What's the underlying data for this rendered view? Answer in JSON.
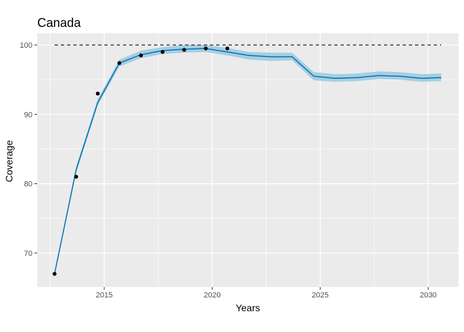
{
  "chart_data": {
    "type": "line",
    "title": "Canada",
    "xlabel": "Years",
    "ylabel": "Coverage",
    "xlim": [
      2011.9,
      2031.4
    ],
    "ylim": [
      65.1,
      101.7
    ],
    "x_ticks": [
      2015,
      2020,
      2025,
      2030
    ],
    "y_ticks": [
      70,
      80,
      90,
      100
    ],
    "x_major_grid": [
      2015,
      2020,
      2025,
      2030
    ],
    "x_minor_grid": [
      2012.5,
      2017.5,
      2022.5,
      2027.5
    ],
    "y_major_grid": [
      70,
      80,
      90,
      100
    ],
    "y_minor_grid": [
      65,
      75,
      85,
      95
    ],
    "grid": true,
    "reference_line": {
      "y": 100,
      "x_start": 2012.7,
      "x_end": 2030.6,
      "style": "dashed"
    },
    "series": [
      {
        "kind": "fit",
        "x": [
          2012.7,
          2013.7,
          2014.7,
          2015.7,
          2016.7,
          2017.7,
          2018.7,
          2019.7,
          2020.7,
          2021.7,
          2022.7,
          2023.7,
          2024.7,
          2025.7,
          2026.7,
          2027.7,
          2028.7,
          2029.7,
          2030.6
        ],
        "y": [
          67.0,
          82.0,
          91.7,
          97.4,
          98.6,
          99.2,
          99.4,
          99.5,
          99.0,
          98.5,
          98.3,
          98.3,
          95.5,
          95.2,
          95.3,
          95.6,
          95.5,
          95.2,
          95.3
        ],
        "lower": [
          67.0,
          81.6,
          91.3,
          96.9,
          98.1,
          98.7,
          98.9,
          99.0,
          98.5,
          97.9,
          97.7,
          97.8,
          94.9,
          94.7,
          94.8,
          95.1,
          95.0,
          94.7,
          94.8
        ],
        "upper": [
          67.0,
          82.5,
          92.2,
          97.9,
          99.2,
          99.7,
          100.0,
          100.0,
          99.6,
          99.0,
          98.9,
          98.9,
          96.1,
          95.8,
          95.9,
          96.2,
          96.1,
          95.8,
          95.9
        ]
      },
      {
        "kind": "observed",
        "x": [
          2012.7,
          2013.7,
          2014.7,
          2015.7,
          2016.7,
          2017.7,
          2018.7,
          2019.7,
          2020.7
        ],
        "y": [
          67.0,
          81.0,
          93.0,
          97.4,
          98.5,
          99.0,
          99.3,
          99.5,
          99.5
        ]
      }
    ],
    "colors": {
      "panel": "#ebebeb",
      "grid": "#ffffff",
      "line": "#0072b2",
      "ribbon": "#a6cee3",
      "point": "#000000",
      "reference": "#333333"
    }
  }
}
